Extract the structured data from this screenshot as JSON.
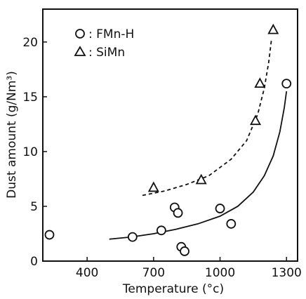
{
  "chart_data": {
    "type": "scatter",
    "xlabel": "Temperature (°c)",
    "ylabel": "Dust amount (g/Nm³)",
    "xlim": [
      200,
      1350
    ],
    "ylim": [
      0,
      23
    ],
    "xticks": [
      400,
      700,
      1000,
      1300
    ],
    "yticks": [
      0,
      5,
      10,
      15,
      20
    ],
    "legend_position": "top-left",
    "series": [
      {
        "name": "FMn-H",
        "marker": "circle",
        "points": [
          {
            "x": 230,
            "y": 2.4
          },
          {
            "x": 605,
            "y": 2.2
          },
          {
            "x": 735,
            "y": 2.8
          },
          {
            "x": 795,
            "y": 4.9
          },
          {
            "x": 810,
            "y": 4.4
          },
          {
            "x": 825,
            "y": 1.3
          },
          {
            "x": 840,
            "y": 0.9
          },
          {
            "x": 1000,
            "y": 4.8
          },
          {
            "x": 1050,
            "y": 3.4
          },
          {
            "x": 1300,
            "y": 16.2
          }
        ],
        "trend": {
          "style": "solid",
          "points": [
            {
              "x": 500,
              "y": 2.0
            },
            {
              "x": 600,
              "y": 2.2
            },
            {
              "x": 700,
              "y": 2.5
            },
            {
              "x": 800,
              "y": 2.9
            },
            {
              "x": 900,
              "y": 3.4
            },
            {
              "x": 1000,
              "y": 4.1
            },
            {
              "x": 1080,
              "y": 5.0
            },
            {
              "x": 1150,
              "y": 6.3
            },
            {
              "x": 1200,
              "y": 7.8
            },
            {
              "x": 1240,
              "y": 9.6
            },
            {
              "x": 1270,
              "y": 11.8
            },
            {
              "x": 1290,
              "y": 14.0
            },
            {
              "x": 1300,
              "y": 15.5
            }
          ]
        }
      },
      {
        "name": "SiMn",
        "marker": "triangle",
        "points": [
          {
            "x": 700,
            "y": 6.7
          },
          {
            "x": 915,
            "y": 7.4
          },
          {
            "x": 1160,
            "y": 12.8
          },
          {
            "x": 1180,
            "y": 16.2
          },
          {
            "x": 1240,
            "y": 21.1
          }
        ],
        "trend": {
          "style": "dashed",
          "points": [
            {
              "x": 650,
              "y": 6.0
            },
            {
              "x": 750,
              "y": 6.4
            },
            {
              "x": 850,
              "y": 7.0
            },
            {
              "x": 950,
              "y": 7.8
            },
            {
              "x": 1050,
              "y": 9.3
            },
            {
              "x": 1120,
              "y": 11.0
            },
            {
              "x": 1170,
              "y": 13.4
            },
            {
              "x": 1200,
              "y": 15.8
            },
            {
              "x": 1220,
              "y": 18.2
            },
            {
              "x": 1232,
              "y": 20.2
            }
          ]
        }
      }
    ]
  },
  "legend": {
    "items": [
      {
        "label": ": FMn-H",
        "marker": "circle"
      },
      {
        "label": ": SiMn",
        "marker": "triangle"
      }
    ]
  }
}
